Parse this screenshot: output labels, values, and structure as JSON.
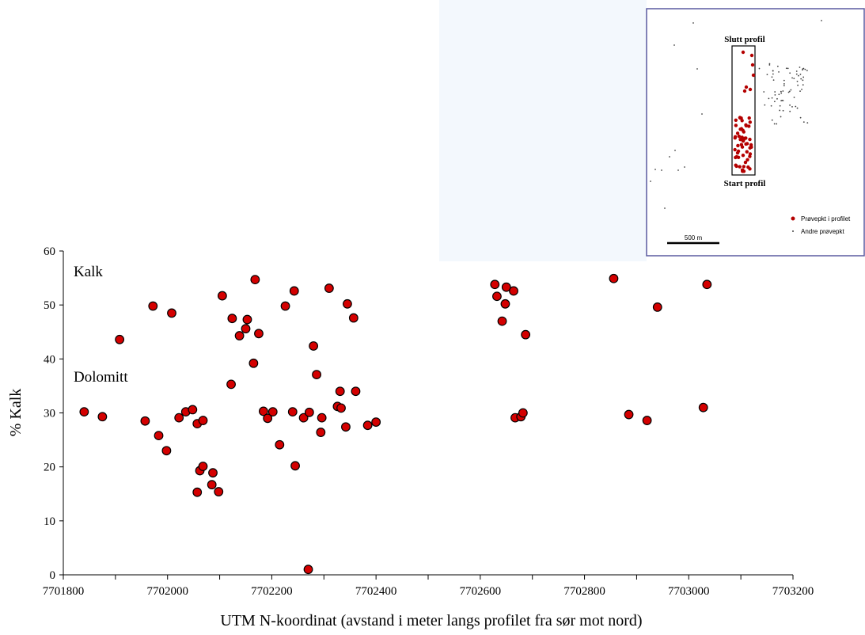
{
  "chart_data": {
    "type": "scatter",
    "xlabel": "UTM N-koordinat (avstand i meter langs profilet fra sør mot nord)",
    "ylabel": "% Kalk",
    "xlim": [
      7701800,
      7703200
    ],
    "ylim": [
      0,
      60
    ],
    "xticks": [
      "7701800",
      "7702000",
      "7702200",
      "7702400",
      "7702600",
      "7702800",
      "7703000",
      "7703200"
    ],
    "yticks": [
      "0",
      "10",
      "20",
      "30",
      "40",
      "50",
      "60"
    ],
    "annotations": [
      "Kalk",
      "Dolomitt"
    ],
    "marker_color": "#d40000",
    "points": [
      [
        7701840,
        30.2
      ],
      [
        7701875,
        29.3
      ],
      [
        7701908,
        43.6
      ],
      [
        7701957,
        28.5
      ],
      [
        7701972,
        49.8
      ],
      [
        7701983,
        25.8
      ],
      [
        7701998,
        23.0
      ],
      [
        7702008,
        48.5
      ],
      [
        7702022,
        29.1
      ],
      [
        7702035,
        30.2
      ],
      [
        7702048,
        30.6
      ],
      [
        7702057,
        28.0
      ],
      [
        7702057,
        15.3
      ],
      [
        7702062,
        19.3
      ],
      [
        7702068,
        20.1
      ],
      [
        7702068,
        28.6
      ],
      [
        7702085,
        16.7
      ],
      [
        7702087,
        18.9
      ],
      [
        7702098,
        15.4
      ],
      [
        7702105,
        51.7
      ],
      [
        7702122,
        35.3
      ],
      [
        7702124,
        47.5
      ],
      [
        7702138,
        44.3
      ],
      [
        7702150,
        45.6
      ],
      [
        7702153,
        47.3
      ],
      [
        7702165,
        39.2
      ],
      [
        7702168,
        54.7
      ],
      [
        7702175,
        44.7
      ],
      [
        7702184,
        30.3
      ],
      [
        7702192,
        29.0
      ],
      [
        7702202,
        30.2
      ],
      [
        7702215,
        24.1
      ],
      [
        7702226,
        49.8
      ],
      [
        7702240,
        30.2
      ],
      [
        7702243,
        52.6
      ],
      [
        7702245,
        20.2
      ],
      [
        7702261,
        29.1
      ],
      [
        7702270,
        1.0
      ],
      [
        7702272,
        30.1
      ],
      [
        7702280,
        42.4
      ],
      [
        7702286,
        37.1
      ],
      [
        7702294,
        26.4
      ],
      [
        7702296,
        29.1
      ],
      [
        7702310,
        53.1
      ],
      [
        7702326,
        31.2
      ],
      [
        7702331,
        34.0
      ],
      [
        7702333,
        30.9
      ],
      [
        7702342,
        27.4
      ],
      [
        7702345,
        50.2
      ],
      [
        7702357,
        47.6
      ],
      [
        7702361,
        34.0
      ],
      [
        7702384,
        27.7
      ],
      [
        7702400,
        28.3
      ],
      [
        7702628,
        53.8
      ],
      [
        7702632,
        51.6
      ],
      [
        7702642,
        47.0
      ],
      [
        7702648,
        50.2
      ],
      [
        7702650,
        53.3
      ],
      [
        7702664,
        52.6
      ],
      [
        7702667,
        29.1
      ],
      [
        7702678,
        29.3
      ],
      [
        7702682,
        30.0
      ],
      [
        7702687,
        44.5
      ],
      [
        7702856,
        54.9
      ],
      [
        7702885,
        29.7
      ],
      [
        7702920,
        28.6
      ],
      [
        7702940,
        49.6
      ],
      [
        7703028,
        31.0
      ],
      [
        7703035,
        53.8
      ]
    ]
  },
  "inset_map": {
    "top_label": "Slutt profil",
    "bottom_label": "Start profil",
    "legend": [
      {
        "label": "Prøvepkt i profilet",
        "color": "#b40000"
      },
      {
        "label": "Andre prøvepkt",
        "color": "#444444"
      }
    ],
    "scale_label": "500 m"
  }
}
